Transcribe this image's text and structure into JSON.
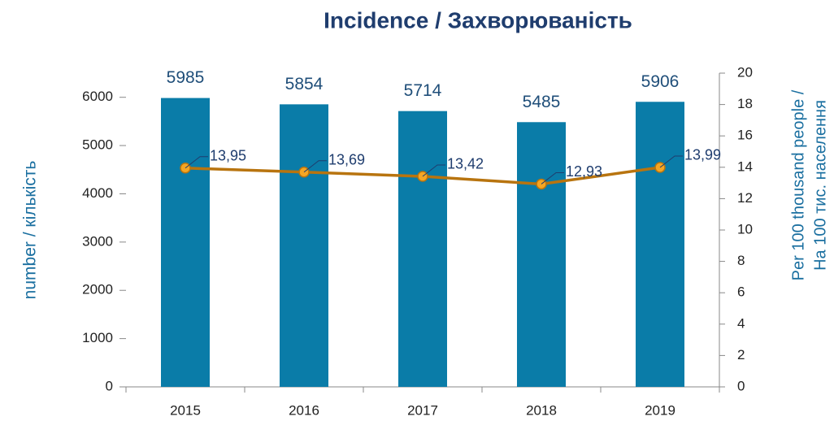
{
  "chart_data": {
    "type": "bar+line",
    "title": "Incidence / Захворюваність",
    "y_label": "number / кількість",
    "y2_label": [
      "Per 100 thousand people /",
      "На 100 тис. населення"
    ],
    "categories": [
      "2015",
      "2016",
      "2017",
      "2018",
      "2019"
    ],
    "series": [
      {
        "type": "bar",
        "color": "#0a7ca8",
        "axis": "y",
        "values": [
          5985,
          5854,
          5714,
          5485,
          5906
        ]
      },
      {
        "type": "line",
        "color": "#b8740f",
        "marker_color": "#f5a623",
        "axis": "y2",
        "values": [
          13.95,
          13.69,
          13.42,
          12.93,
          13.99
        ],
        "value_labels": [
          "13,95",
          "13,69",
          "13,42",
          "12,93",
          "13,99"
        ]
      }
    ],
    "ylim": [
      0,
      6500
    ],
    "yticks": [
      0,
      1000,
      2000,
      3000,
      4000,
      5000,
      6000
    ],
    "y2lim": [
      0,
      20
    ],
    "y2ticks": [
      0,
      2,
      4,
      6,
      8,
      10,
      12,
      14,
      16,
      18,
      20
    ]
  }
}
